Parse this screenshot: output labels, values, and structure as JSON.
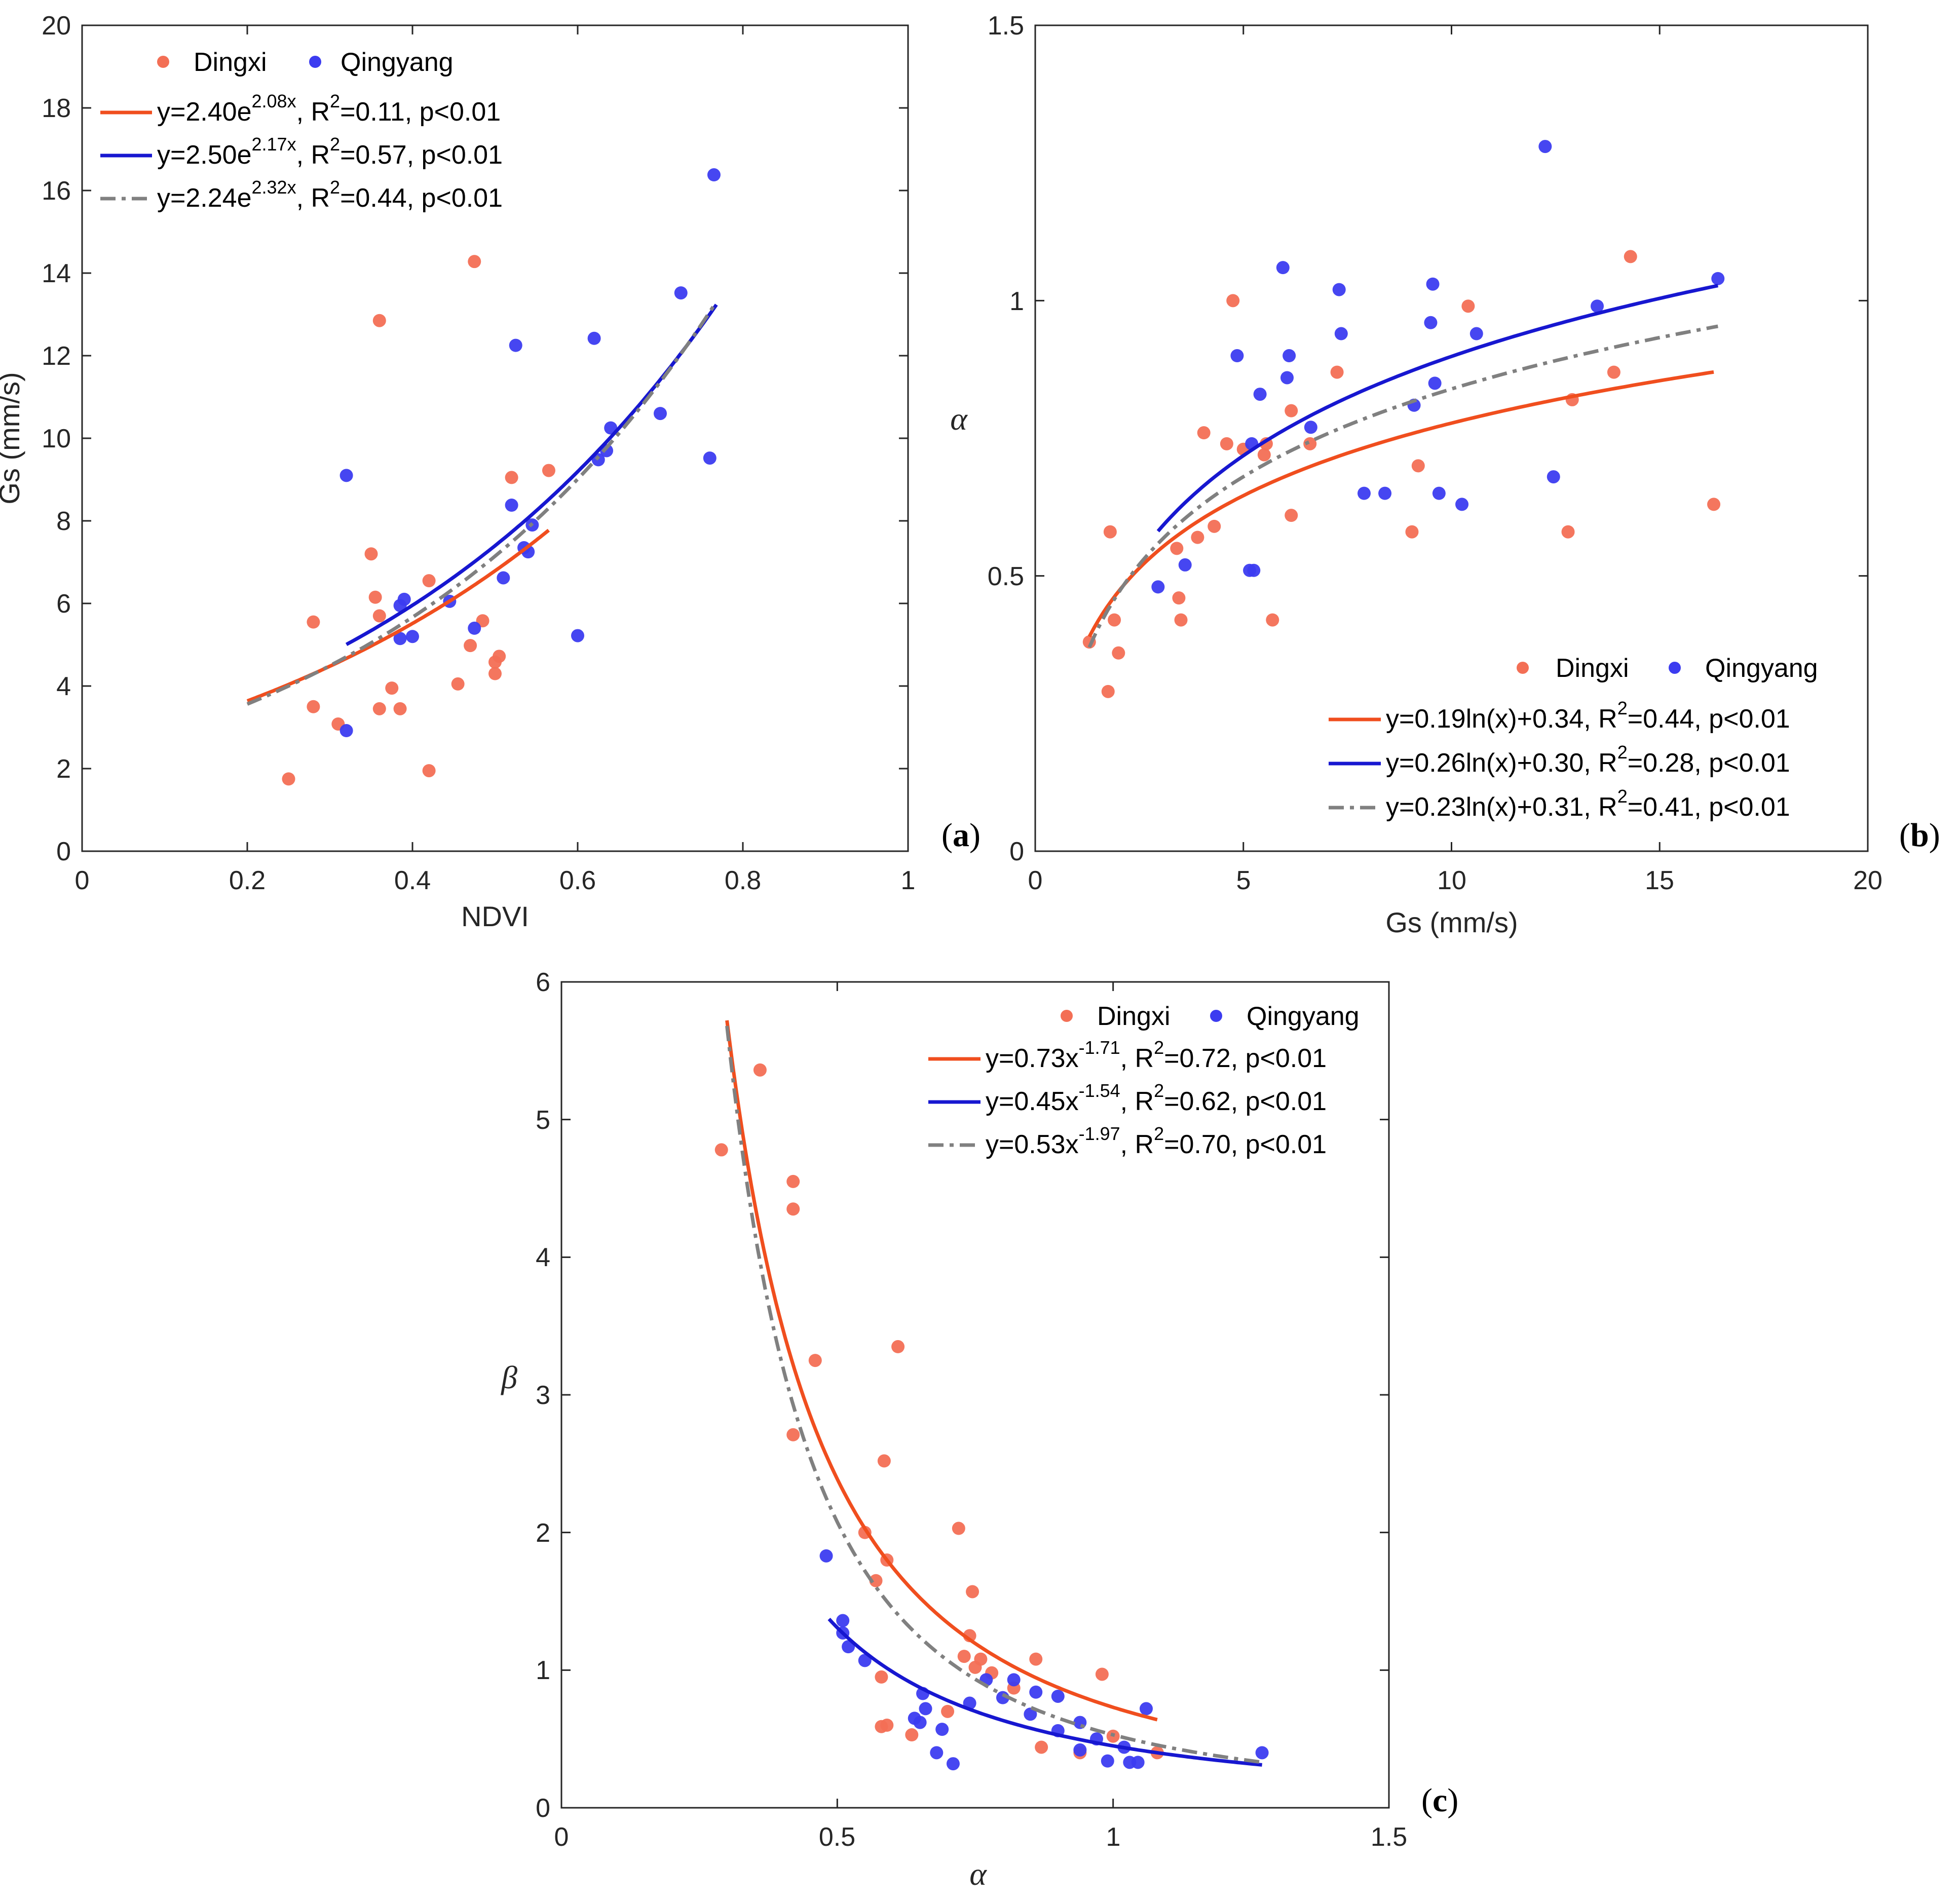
{
  "colors": {
    "dingxi": "#f36f55",
    "qingyang": "#3c3cf0",
    "fit_dingxi": "#f04e1e",
    "fit_qingyang": "#1717d0",
    "fit_all": "#808080",
    "axis": "#262626"
  },
  "chart_data": [
    {
      "id": "a",
      "type": "scatter",
      "panel_label_open": "(",
      "panel_label_letter": "a",
      "panel_label_close": ")",
      "xlabel": "NDVI",
      "ylabel": "Gs (mm/s)",
      "xlim": [
        0,
        1
      ],
      "ylim": [
        0,
        20
      ],
      "xticks": [
        0,
        0.2,
        0.4,
        0.6,
        0.8,
        1
      ],
      "xtick_labels": [
        "0",
        "0.2",
        "0.4",
        "0.6",
        "0.8",
        "1"
      ],
      "yticks": [
        0,
        2,
        4,
        6,
        8,
        10,
        12,
        14,
        16,
        18,
        20
      ],
      "ytick_labels": [
        "0",
        "2",
        "4",
        "6",
        "8",
        "10",
        "12",
        "14",
        "16",
        "18",
        "20"
      ],
      "legend_position": "top-left",
      "series": [
        {
          "name": "Dingxi",
          "color_key": "dingxi",
          "points": [
            [
              0.25,
              1.75
            ],
            [
              0.28,
              5.55
            ],
            [
              0.28,
              3.5
            ],
            [
              0.31,
              3.08
            ],
            [
              0.35,
              7.2
            ],
            [
              0.355,
              6.15
            ],
            [
              0.36,
              12.85
            ],
            [
              0.36,
              5.7
            ],
            [
              0.36,
              3.45
            ],
            [
              0.375,
              3.95
            ],
            [
              0.385,
              3.45
            ],
            [
              0.42,
              6.55
            ],
            [
              0.42,
              1.95
            ],
            [
              0.455,
              4.05
            ],
            [
              0.47,
              4.98
            ],
            [
              0.475,
              14.28
            ],
            [
              0.485,
              5.58
            ],
            [
              0.5,
              4.3
            ],
            [
              0.5,
              4.58
            ],
            [
              0.505,
              4.72
            ],
            [
              0.52,
              9.05
            ],
            [
              0.565,
              9.22
            ]
          ]
        },
        {
          "name": "Qingyang",
          "color_key": "qingyang",
          "points": [
            [
              0.32,
              9.1
            ],
            [
              0.32,
              2.92
            ],
            [
              0.385,
              5.15
            ],
            [
              0.385,
              5.95
            ],
            [
              0.39,
              6.1
            ],
            [
              0.4,
              5.2
            ],
            [
              0.445,
              6.05
            ],
            [
              0.475,
              5.4
            ],
            [
              0.51,
              6.62
            ],
            [
              0.52,
              8.38
            ],
            [
              0.525,
              12.25
            ],
            [
              0.535,
              7.35
            ],
            [
              0.54,
              7.25
            ],
            [
              0.545,
              7.9
            ],
            [
              0.6,
              5.22
            ],
            [
              0.62,
              12.42
            ],
            [
              0.625,
              9.48
            ],
            [
              0.635,
              9.7
            ],
            [
              0.64,
              10.25
            ],
            [
              0.7,
              10.6
            ],
            [
              0.725,
              13.52
            ],
            [
              0.76,
              9.52
            ],
            [
              0.765,
              16.38
            ]
          ]
        }
      ],
      "fits": [
        {
          "label": "y=2.40e",
          "sup": "2.08x",
          "rest": ", R",
          "sup2": "2",
          "tail": "=0.11, p<0.01",
          "color_key": "fit_dingxi",
          "dash": "solid",
          "model": "exp",
          "a": 2.4,
          "b": 2.08,
          "xrange": [
            0.2,
            0.565
          ]
        },
        {
          "label": "y=2.50e",
          "sup": "2.17x",
          "rest": ", R",
          "sup2": "2",
          "tail": "=0.57, p<0.01",
          "color_key": "fit_qingyang",
          "dash": "solid",
          "model": "exp",
          "a": 2.5,
          "b": 2.17,
          "xrange": [
            0.32,
            0.768
          ]
        },
        {
          "label": "y=2.24e",
          "sup": "2.32x",
          "rest": ", R",
          "sup2": "2",
          "tail": "=0.44, p<0.01",
          "color_key": "fit_all",
          "dash": "dashdot",
          "model": "exp",
          "a": 2.24,
          "b": 2.32,
          "xrange": [
            0.2,
            0.768
          ]
        }
      ]
    },
    {
      "id": "b",
      "type": "scatter",
      "panel_label_open": "(",
      "panel_label_letter": "b",
      "panel_label_close": ")",
      "xlabel": "Gs (mm/s)",
      "ylabel": "α",
      "xlim": [
        0,
        20
      ],
      "ylim": [
        0,
        1.5
      ],
      "xticks": [
        0,
        5,
        10,
        15,
        20
      ],
      "xtick_labels": [
        "0",
        "5",
        "10",
        "15",
        "20"
      ],
      "yticks": [
        0,
        0.5,
        1,
        1.5
      ],
      "ytick_labels": [
        "0",
        "0.5",
        "1",
        "1.5"
      ],
      "legend_position": "bottom-right",
      "series": [
        {
          "name": "Dingxi",
          "color_key": "dingxi",
          "points": [
            [
              1.3,
              0.38
            ],
            [
              1.75,
              0.29
            ],
            [
              1.8,
              0.58
            ],
            [
              1.9,
              0.42
            ],
            [
              2.0,
              0.36
            ],
            [
              3.4,
              0.55
            ],
            [
              3.45,
              0.46
            ],
            [
              3.5,
              0.42
            ],
            [
              3.9,
              0.57
            ],
            [
              4.05,
              0.76
            ],
            [
              4.3,
              0.59
            ],
            [
              4.6,
              0.74
            ],
            [
              4.75,
              1.0
            ],
            [
              5.0,
              0.73
            ],
            [
              5.5,
              0.72
            ],
            [
              5.55,
              0.74
            ],
            [
              5.7,
              0.42
            ],
            [
              6.15,
              0.8
            ],
            [
              6.15,
              0.61
            ],
            [
              6.6,
              0.74
            ],
            [
              7.25,
              0.87
            ],
            [
              9.05,
              0.58
            ],
            [
              9.2,
              0.7
            ],
            [
              10.4,
              0.99
            ],
            [
              12.8,
              0.58
            ],
            [
              12.9,
              0.82
            ],
            [
              13.9,
              0.87
            ],
            [
              14.3,
              1.08
            ],
            [
              16.3,
              0.63
            ]
          ]
        },
        {
          "name": "Qingyang",
          "color_key": "qingyang",
          "points": [
            [
              2.95,
              0.48
            ],
            [
              3.6,
              0.52
            ],
            [
              4.85,
              0.9
            ],
            [
              5.15,
              0.51
            ],
            [
              5.25,
              0.51
            ],
            [
              5.2,
              0.74
            ],
            [
              5.4,
              0.83
            ],
            [
              5.95,
              1.06
            ],
            [
              6.05,
              0.86
            ],
            [
              6.1,
              0.9
            ],
            [
              6.62,
              0.77
            ],
            [
              7.3,
              1.02
            ],
            [
              7.35,
              0.94
            ],
            [
              7.9,
              0.65
            ],
            [
              8.4,
              0.65
            ],
            [
              9.1,
              0.81
            ],
            [
              9.5,
              0.96
            ],
            [
              9.55,
              1.03
            ],
            [
              9.6,
              0.85
            ],
            [
              9.7,
              0.65
            ],
            [
              10.25,
              0.63
            ],
            [
              10.6,
              0.94
            ],
            [
              12.25,
              1.28
            ],
            [
              12.45,
              0.68
            ],
            [
              13.5,
              0.99
            ],
            [
              16.4,
              1.04
            ]
          ]
        }
      ],
      "fits": [
        {
          "label": "y=0.19ln(x)+0.34, R",
          "sup": "2",
          "tail": "=0.44, p<0.01",
          "color_key": "fit_dingxi",
          "dash": "solid",
          "model": "log",
          "a": 0.19,
          "b": 0.34,
          "xrange": [
            1.3,
            16.3
          ]
        },
        {
          "label": "y=0.26ln(x)+0.30, R",
          "sup": "2",
          "tail": "=0.28, p<0.01",
          "color_key": "fit_qingyang",
          "dash": "solid",
          "model": "log",
          "a": 0.26,
          "b": 0.3,
          "xrange": [
            2.95,
            16.4
          ]
        },
        {
          "label": "y=0.23ln(x)+0.31, R",
          "sup": "2",
          "tail": "=0.41, p<0.01",
          "color_key": "fit_all",
          "dash": "dashdot",
          "model": "log",
          "a": 0.23,
          "b": 0.31,
          "xrange": [
            1.3,
            16.4
          ]
        }
      ]
    },
    {
      "id": "c",
      "type": "scatter",
      "panel_label_open": "(",
      "panel_label_letter": "c",
      "panel_label_close": ")",
      "xlabel": "α",
      "ylabel": "β",
      "xlim": [
        0,
        1.5
      ],
      "ylim": [
        0,
        6
      ],
      "xticks": [
        0,
        0.5,
        1,
        1.5
      ],
      "xtick_labels": [
        "0",
        "0.5",
        "1",
        "1.5"
      ],
      "yticks": [
        0,
        1,
        2,
        3,
        4,
        5,
        6
      ],
      "ytick_labels": [
        "0",
        "1",
        "2",
        "3",
        "4",
        "5",
        "6"
      ],
      "legend_position": "top-right",
      "series": [
        {
          "name": "Dingxi",
          "color_key": "dingxi",
          "points": [
            [
              0.29,
              4.78
            ],
            [
              0.36,
              5.36
            ],
            [
              0.42,
              4.55
            ],
            [
              0.42,
              4.35
            ],
            [
              0.42,
              2.71
            ],
            [
              0.46,
              3.25
            ],
            [
              0.55,
              2.0
            ],
            [
              0.57,
              1.65
            ],
            [
              0.58,
              0.95
            ],
            [
              0.58,
              0.59
            ],
            [
              0.59,
              0.6
            ],
            [
              0.585,
              2.52
            ],
            [
              0.59,
              1.8
            ],
            [
              0.61,
              3.35
            ],
            [
              0.635,
              0.53
            ],
            [
              0.7,
              0.7
            ],
            [
              0.72,
              2.03
            ],
            [
              0.73,
              1.1
            ],
            [
              0.74,
              1.25
            ],
            [
              0.745,
              1.57
            ],
            [
              0.75,
              1.02
            ],
            [
              0.76,
              1.08
            ],
            [
              0.78,
              0.98
            ],
            [
              0.82,
              0.87
            ],
            [
              0.86,
              1.08
            ],
            [
              0.87,
              0.44
            ],
            [
              0.94,
              0.4
            ],
            [
              0.98,
              0.97
            ],
            [
              1.0,
              0.52
            ],
            [
              1.08,
              0.4
            ]
          ]
        },
        {
          "name": "Qingyang",
          "color_key": "qingyang",
          "points": [
            [
              0.48,
              1.83
            ],
            [
              0.51,
              1.27
            ],
            [
              0.51,
              1.36
            ],
            [
              0.52,
              1.17
            ],
            [
              0.55,
              1.07
            ],
            [
              0.64,
              0.65
            ],
            [
              0.65,
              0.62
            ],
            [
              0.655,
              0.83
            ],
            [
              0.66,
              0.72
            ],
            [
              0.68,
              0.4
            ],
            [
              0.69,
              0.57
            ],
            [
              0.71,
              0.32
            ],
            [
              0.74,
              0.76
            ],
            [
              0.77,
              0.93
            ],
            [
              0.8,
              0.8
            ],
            [
              0.82,
              0.93
            ],
            [
              0.85,
              0.68
            ],
            [
              0.86,
              0.84
            ],
            [
              0.9,
              0.81
            ],
            [
              0.9,
              0.56
            ],
            [
              0.94,
              0.42
            ],
            [
              0.94,
              0.62
            ],
            [
              0.97,
              0.5
            ],
            [
              0.99,
              0.34
            ],
            [
              1.02,
              0.44
            ],
            [
              1.03,
              0.33
            ],
            [
              1.045,
              0.33
            ],
            [
              1.06,
              0.72
            ],
            [
              1.27,
              0.4
            ]
          ]
        }
      ],
      "fits": [
        {
          "label": "y=0.73x",
          "sup": "-1.71",
          "rest": ", R",
          "sup2": "2",
          "tail": "=0.72, p<0.01",
          "color_key": "fit_dingxi",
          "dash": "solid",
          "model": "power",
          "a": 0.73,
          "b": -1.71,
          "xrange": [
            0.3,
            1.08
          ]
        },
        {
          "label": "y=0.45x",
          "sup": "-1.54",
          "rest": ", R",
          "sup2": "2",
          "tail": "=0.62, p<0.01",
          "color_key": "fit_qingyang",
          "dash": "solid",
          "model": "power",
          "a": 0.45,
          "b": -1.54,
          "xrange": [
            0.485,
            1.27
          ]
        },
        {
          "label": "y=0.53x",
          "sup": "-1.97",
          "rest": ", R",
          "sup2": "2",
          "tail": "=0.70, p<0.01",
          "color_key": "fit_all",
          "dash": "dashdot",
          "model": "power",
          "a": 0.53,
          "b": -1.97,
          "xrange": [
            0.3,
            1.27
          ]
        }
      ]
    }
  ]
}
